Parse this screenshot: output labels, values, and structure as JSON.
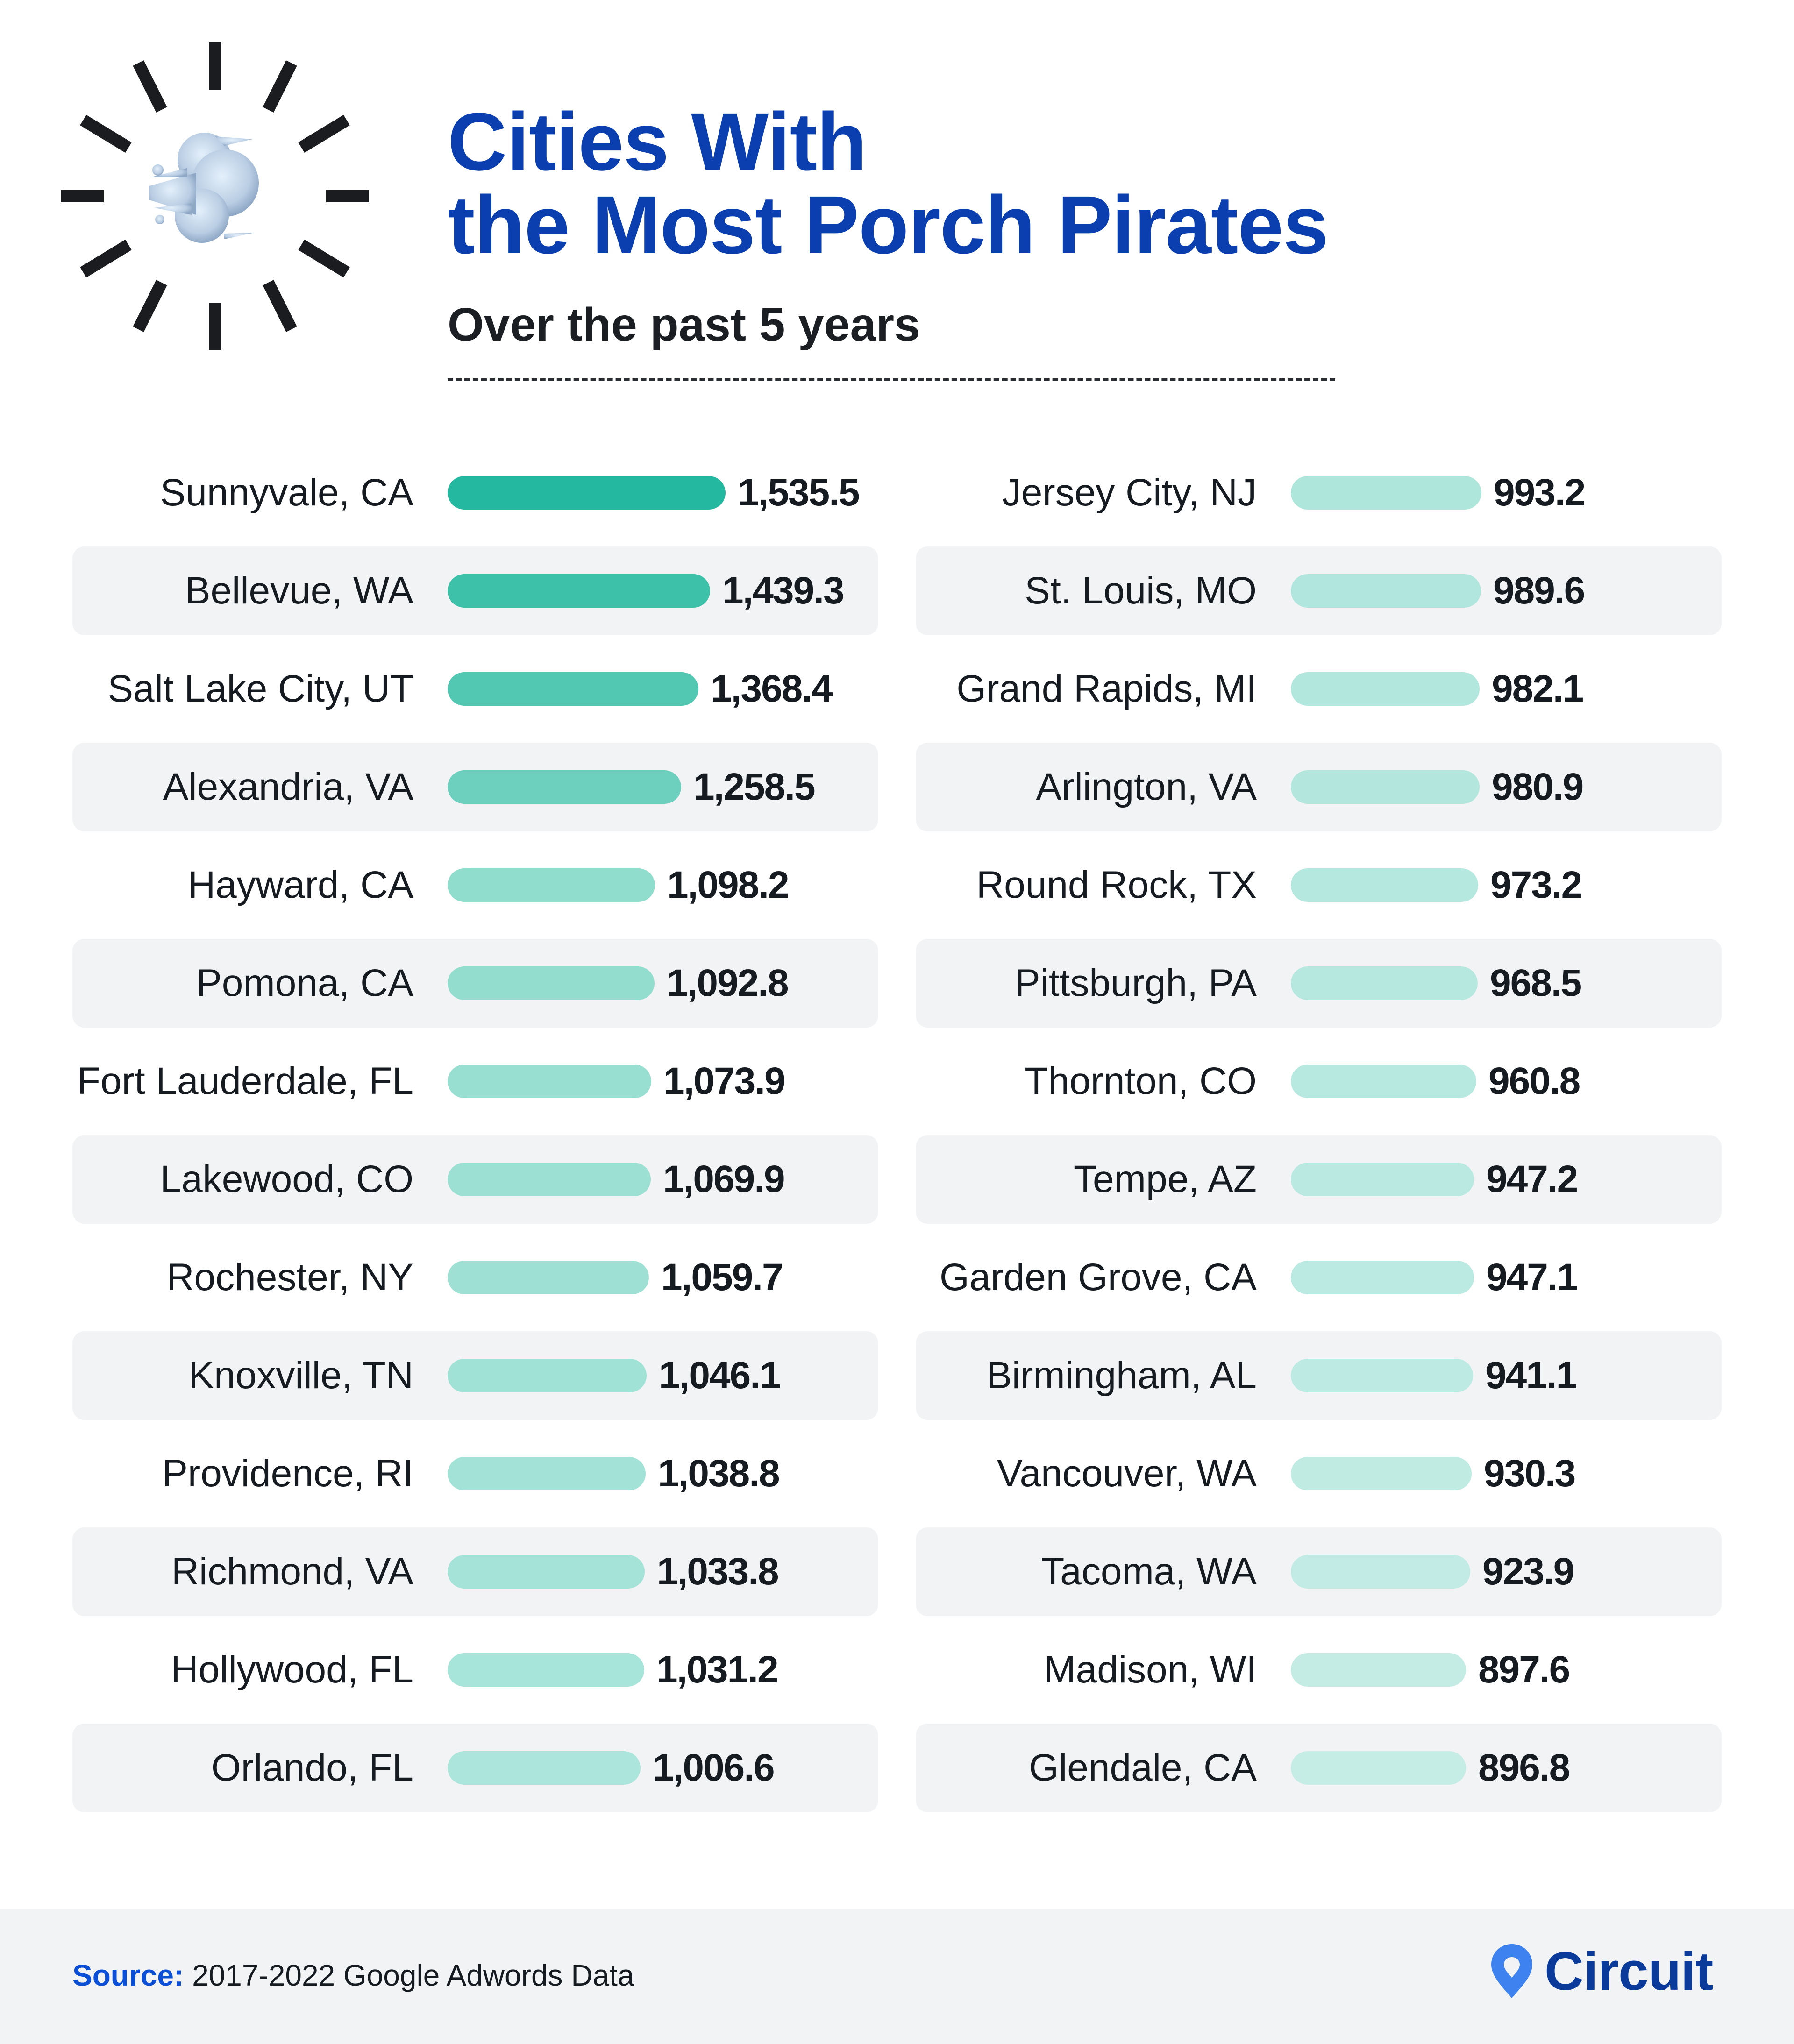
{
  "header": {
    "title_line1": "Cities With",
    "title_line2": "the Most Porch Pirates",
    "subtitle": "Over the past 5 years",
    "icon": "dash-symbol-emoji-burst-icon"
  },
  "footer": {
    "source_label": "Source:",
    "source_text": "2017-2022 Google Adwords Data",
    "brand": "Circuit",
    "brand_icon": "map-pin-icon"
  },
  "colors": {
    "title": "#0b3fb0",
    "bar_top": "#25b8a0",
    "bar_light": "#c6ebe2",
    "row_alt_bg": "#f2f3f5",
    "source_label": "#0b4fd6",
    "brand_pin": "#3e82f0",
    "brand_text": "#0a3a9a"
  },
  "left_rows": [
    {
      "city": "Sunnyvale, CA",
      "value": "1,535.5",
      "num": 1535.5,
      "color": "#25b8a0"
    },
    {
      "city": "Bellevue, WA",
      "value": "1,439.3",
      "num": 1439.3,
      "color": "#3dc1a9"
    },
    {
      "city": "Salt Lake City, UT",
      "value": "1,368.4",
      "num": 1368.4,
      "color": "#52c8b3"
    },
    {
      "city": "Alexandria, VA",
      "value": "1,258.5",
      "num": 1258.5,
      "color": "#6dd0be"
    },
    {
      "city": "Hayward, CA",
      "value": "1,098.2",
      "num": 1098.2,
      "color": "#90dccd"
    },
    {
      "city": "Pomona, CA",
      "value": "1,092.8",
      "num": 1092.8,
      "color": "#93ddcf"
    },
    {
      "city": "Fort Lauderdale, FL",
      "value": "1,073.9",
      "num": 1073.9,
      "color": "#98dfd1"
    },
    {
      "city": "Lakewood, CO",
      "value": "1,069.9",
      "num": 1069.9,
      "color": "#9be0d2"
    },
    {
      "city": "Rochester, NY",
      "value": "1,059.7",
      "num": 1059.7,
      "color": "#9ee1d4"
    },
    {
      "city": "Knoxville, TN",
      "value": "1,046.1",
      "num": 1046.1,
      "color": "#a1e2d6"
    },
    {
      "city": "Providence, RI",
      "value": "1,038.8",
      "num": 1038.8,
      "color": "#a3e3d7"
    },
    {
      "city": "Richmond, VA",
      "value": "1,033.8",
      "num": 1033.8,
      "color": "#a5e3d8"
    },
    {
      "city": "Hollywood, FL",
      "value": "1,031.2",
      "num": 1031.2,
      "color": "#a7e4d9"
    },
    {
      "city": "Orlando, FL",
      "value": "1,006.6",
      "num": 1006.6,
      "color": "#abe5db"
    }
  ],
  "right_rows": [
    {
      "city": "Jersey City, NJ",
      "value": "993.2",
      "num": 993.2,
      "color": "#afe6dc"
    },
    {
      "city": "St. Louis, MO",
      "value": "989.6",
      "num": 989.6,
      "color": "#b0e6dd"
    },
    {
      "city": "Grand Rapids, MI",
      "value": "982.1",
      "num": 982.1,
      "color": "#b2e7de"
    },
    {
      "city": "Arlington, VA",
      "value": "980.9",
      "num": 980.9,
      "color": "#b3e7de"
    },
    {
      "city": "Round Rock, TX",
      "value": "973.2",
      "num": 973.2,
      "color": "#b5e8df"
    },
    {
      "city": "Pittsburgh, PA",
      "value": "968.5",
      "num": 968.5,
      "color": "#b6e8e0"
    },
    {
      "city": "Thornton, CO",
      "value": "960.8",
      "num": 960.8,
      "color": "#b8e9e0"
    },
    {
      "city": "Tempe, AZ",
      "value": "947.2",
      "num": 947.2,
      "color": "#bae9e1"
    },
    {
      "city": "Garden Grove, CA",
      "value": "947.1",
      "num": 947.1,
      "color": "#bbeae2"
    },
    {
      "city": "Birmingham, AL",
      "value": "941.1",
      "num": 941.1,
      "color": "#bdeae3"
    },
    {
      "city": "Vancouver, WA",
      "value": "930.3",
      "num": 930.3,
      "color": "#bfebe3"
    },
    {
      "city": "Tacoma, WA",
      "value": "923.9",
      "num": 923.9,
      "color": "#c1ebe4"
    },
    {
      "city": "Madison, WI",
      "value": "897.6",
      "num": 897.6,
      "color": "#c4ece5"
    },
    {
      "city": "Glendale, CA",
      "value": "896.8",
      "num": 896.8,
      "color": "#c6ece6"
    }
  ],
  "chart_data": {
    "type": "bar",
    "orientation": "horizontal",
    "title": "Cities With the Most Porch Pirates",
    "subtitle": "Over the past 5 years",
    "source": "2017-2022 Google Adwords Data",
    "xlabel": "",
    "ylabel": "",
    "grid": false,
    "legend": null,
    "categories": [
      "Sunnyvale, CA",
      "Bellevue, WA",
      "Salt Lake City, UT",
      "Alexandria, VA",
      "Hayward, CA",
      "Pomona, CA",
      "Fort Lauderdale, FL",
      "Lakewood, CO",
      "Rochester, NY",
      "Knoxville, TN",
      "Providence, RI",
      "Richmond, VA",
      "Hollywood, FL",
      "Orlando, FL",
      "Jersey City, NJ",
      "St. Louis, MO",
      "Grand Rapids, MI",
      "Arlington, VA",
      "Round Rock, TX",
      "Pittsburgh, PA",
      "Thornton, CO",
      "Tempe, AZ",
      "Garden Grove, CA",
      "Birmingham, AL",
      "Vancouver, WA",
      "Tacoma, WA",
      "Madison, WI",
      "Glendale, CA"
    ],
    "values": [
      1535.5,
      1439.3,
      1368.4,
      1258.5,
      1098.2,
      1092.8,
      1073.9,
      1069.9,
      1059.7,
      1046.1,
      1038.8,
      1033.8,
      1031.2,
      1006.6,
      993.2,
      989.6,
      982.1,
      980.9,
      973.2,
      968.5,
      960.8,
      947.2,
      947.1,
      941.1,
      930.3,
      923.9,
      897.6,
      896.8
    ],
    "layout": "two columns of 14 ranked rows, value labels at bar ends"
  }
}
